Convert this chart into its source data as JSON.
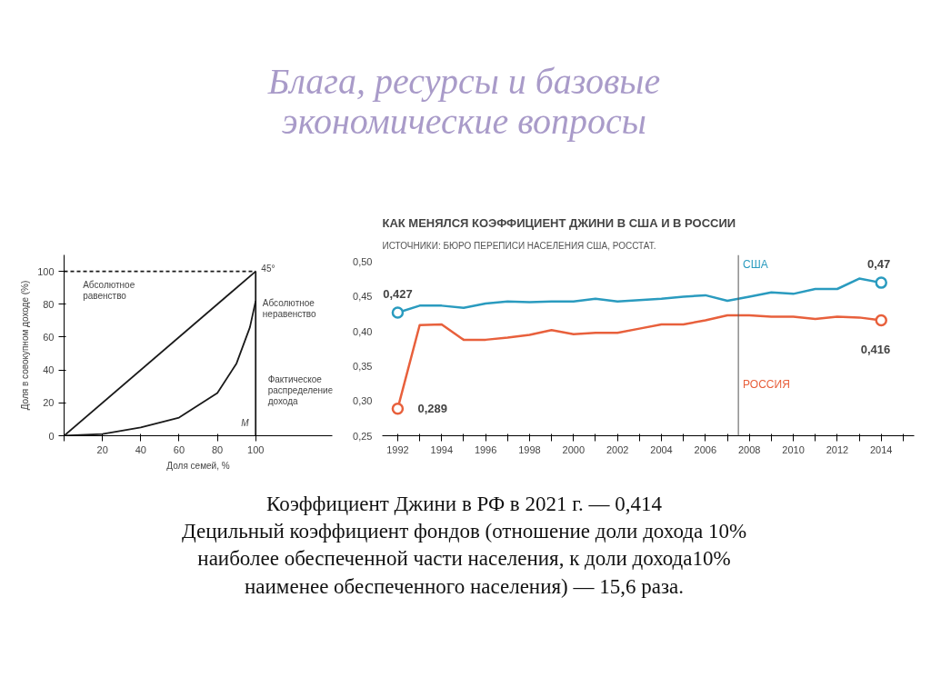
{
  "chart_data": [
    {
      "type": "other",
      "title": "Блага, ресурсы и базовые экономические вопросы"
    },
    {
      "type": "line",
      "xlabel": "Доля семей, %",
      "ylabel": "Доля в совокупном доходе (%)",
      "xlim": [
        0,
        140
      ],
      "ylim": [
        0,
        110
      ],
      "xticks": [
        {
          "value": 0,
          "label": null
        },
        20,
        40,
        60,
        80,
        100
      ],
      "yticks": [
        0,
        20,
        40,
        60,
        80,
        100
      ],
      "series": [
        {
          "color": "#1a1a1a",
          "x": [
            0,
            100
          ],
          "values": [
            0,
            100
          ]
        },
        {
          "color": "#1a1a1a",
          "x": [
            0,
            20,
            40,
            60,
            80,
            90,
            97,
            100
          ],
          "values": [
            0,
            1,
            5,
            11,
            26,
            44,
            66,
            82
          ]
        },
        {
          "color": "#1a1a1a",
          "x": [
            100,
            100
          ],
          "values": [
            0,
            100
          ]
        },
        {
          "color": "#1a1a1a",
          "x": [
            0,
            100
          ],
          "values": [
            100,
            100
          ],
          "line_style": "dashed"
        }
      ],
      "annotations": [
        "Абсолютное равенство",
        "Абсолютное неравенство",
        "Фактическое распределение дохода",
        "45°",
        "M"
      ]
    },
    {
      "type": "line",
      "title": "КАК МЕНЯЛСЯ КОЭФФИЦИЕНТ ДЖИНИ В США И В РОССИИ",
      "subtitle": "ИСТОЧНИКИ: БЮРО ПЕРЕПИСИ НАСЕЛЕНИЯ США, РОССТАТ.",
      "x": [
        1992,
        1993,
        1994,
        1995,
        1996,
        1997,
        1998,
        1999,
        2000,
        2001,
        2002,
        2003,
        2004,
        2005,
        2006,
        2007,
        2008,
        2009,
        2010,
        2011,
        2012,
        2013,
        2014
      ],
      "xlim": [
        1991.3,
        2015.5
      ],
      "ylim": [
        0.25,
        0.51
      ],
      "xticks": [
        1992,
        {
          "value": 1993,
          "label": null
        },
        1994,
        {
          "value": 1995,
          "label": null
        },
        1996,
        {
          "value": 1997,
          "label": null
        },
        1998,
        {
          "value": 1999,
          "label": null
        },
        2000,
        {
          "value": 2001,
          "label": null
        },
        2002,
        {
          "value": 2003,
          "label": null
        },
        2004,
        {
          "value": 2005,
          "label": null
        },
        2006,
        {
          "value": 2007,
          "label": null
        },
        2008,
        {
          "value": 2009,
          "label": null
        },
        2010,
        {
          "value": 2011,
          "label": null
        },
        2012,
        {
          "value": 2013,
          "label": null
        },
        2014,
        {
          "value": 2015,
          "label": null
        }
      ],
      "yticks": [
        {
          "value": 0.25,
          "label": "0,25"
        },
        {
          "value": 0.3,
          "label": "0,30"
        },
        {
          "value": 0.35,
          "label": "0,35"
        },
        {
          "value": 0.4,
          "label": "0,40"
        },
        {
          "value": 0.45,
          "label": "0,45"
        },
        {
          "value": 0.5,
          "label": "0,50"
        }
      ],
      "series": [
        {
          "name": "США",
          "color": "#2a9bbf",
          "values": [
            0.427,
            0.437,
            0.437,
            0.434,
            0.44,
            0.443,
            0.442,
            0.443,
            0.443,
            0.447,
            0.443,
            0.445,
            0.447,
            0.45,
            0.452,
            0.444,
            0.45,
            0.456,
            0.454,
            0.461,
            0.461,
            0.476,
            0.47
          ],
          "value_labels": [
            "0,427",
            null,
            null,
            null,
            null,
            null,
            null,
            null,
            null,
            null,
            null,
            null,
            null,
            null,
            null,
            null,
            null,
            null,
            null,
            null,
            null,
            null,
            "0,47"
          ]
        },
        {
          "name": "РОССИЯ",
          "color": "#e8603c",
          "values": [
            0.289,
            0.409,
            0.41,
            0.388,
            0.388,
            0.391,
            0.395,
            0.402,
            0.396,
            0.398,
            0.398,
            0.404,
            0.41,
            0.41,
            0.416,
            0.423,
            0.423,
            0.421,
            0.421,
            0.418,
            0.421,
            0.42,
            0.416
          ],
          "value_labels": [
            "0,289",
            null,
            null,
            null,
            null,
            null,
            null,
            null,
            null,
            null,
            null,
            null,
            null,
            null,
            null,
            null,
            null,
            null,
            null,
            null,
            null,
            null,
            "0,416"
          ]
        }
      ],
      "ref_lines": [
        {
          "axis": "x",
          "value": 2007.5,
          "color": "#555555"
        }
      ]
    },
    {
      "type": "other",
      "annotations": [
        "Коэффициент Джини в РФ в 2021 г. — 0,414",
        "Децильный коэффициент фондов (отношение доли дохода 10% наиболее обеспеченной части населения, к доли дохода10% наименее обеспеченного населения) — 15,6 раза."
      ]
    }
  ]
}
